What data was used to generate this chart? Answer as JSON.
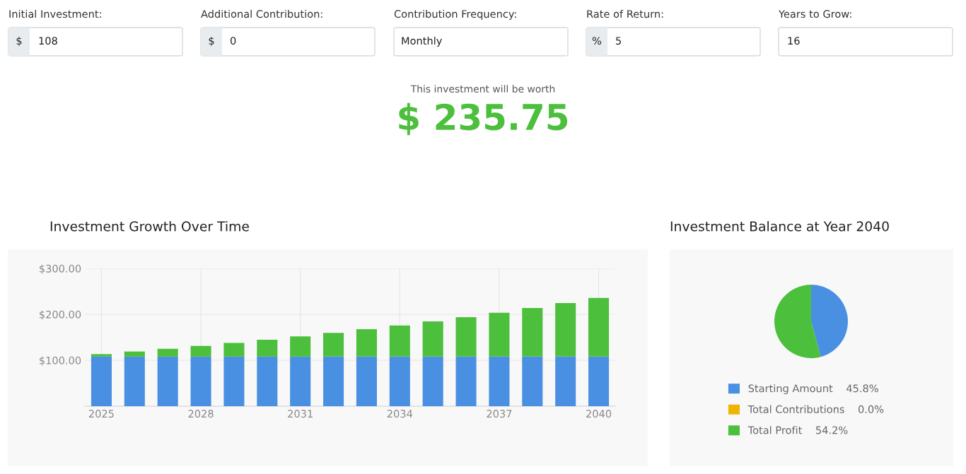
{
  "chart_data": [
    {
      "type": "other",
      "annotations": [
        "Initial Investment:",
        "Additional Contribution:",
        "Contribution Frequency:",
        "Rate of Return:",
        "Years to Grow:",
        "$",
        "108",
        "$",
        "0",
        "Monthly",
        "%",
        "5",
        "16",
        "This investment will be worth",
        "$ 235.75"
      ]
    },
    {
      "type": "bar",
      "title": "Investment Growth Over Time",
      "stacked": true,
      "grid": true,
      "categories": [
        "2025",
        null,
        null,
        "2028",
        null,
        null,
        "2031",
        null,
        null,
        "2034",
        null,
        null,
        "2037",
        null,
        null,
        "2040"
      ],
      "series": [
        {
          "color": "#4a90e2",
          "values": [
            108,
            108,
            108,
            108,
            108,
            108,
            108,
            108,
            108,
            108,
            108,
            108,
            108,
            108,
            108,
            108
          ]
        },
        {
          "color": "#4cbf3c",
          "values": [
            5.4,
            11.1,
            17.0,
            23.3,
            29.8,
            36.7,
            44.0,
            51.6,
            59.5,
            67.9,
            76.7,
            86.0,
            95.6,
            105.8,
            116.5,
            127.8
          ]
        }
      ],
      "ylim": [
        0,
        300
      ],
      "yticks": [
        {
          "value": 100,
          "label": "$100.00"
        },
        {
          "value": 200,
          "label": "$200.00"
        },
        {
          "value": 300,
          "label": "$300.00"
        }
      ]
    },
    {
      "type": "pie",
      "title": "Investment Balance at Year 2040",
      "legend": "bottom",
      "categories": [
        "Starting Amount",
        "Total Contributions",
        "Total Profit"
      ],
      "values": [
        45.8,
        0.0,
        54.2
      ],
      "colors": [
        "#4a90e2",
        "#f0b400",
        "#4cbf3c"
      ],
      "value_labels": [
        "45.8%",
        "0.0%",
        "54.2%"
      ]
    }
  ]
}
